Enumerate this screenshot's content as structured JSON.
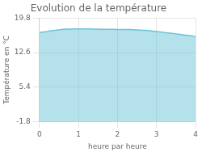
{
  "chart_data": {
    "type": "area",
    "title": "Evolution de la température",
    "xlabel": "heure par heure",
    "ylabel": "Température en °C",
    "x": [
      0.0,
      0.1,
      0.2,
      0.3,
      0.4,
      0.5,
      0.6,
      0.7,
      0.8,
      0.9,
      1.0,
      1.1,
      1.2,
      1.3,
      1.4,
      1.5,
      1.6,
      1.7,
      1.8,
      1.9,
      2.0,
      2.1,
      2.2,
      2.3,
      2.4,
      2.5,
      2.6,
      2.7,
      2.8,
      2.9,
      3.0,
      3.1,
      3.2,
      3.3,
      3.4,
      3.5,
      3.6,
      3.7,
      3.8,
      3.9,
      4.0
    ],
    "values": [
      16.8,
      16.9,
      17.0,
      17.15,
      17.25,
      17.35,
      17.45,
      17.5,
      17.52,
      17.53,
      17.55,
      17.55,
      17.55,
      17.53,
      17.52,
      17.5,
      17.48,
      17.47,
      17.46,
      17.45,
      17.44,
      17.43,
      17.42,
      17.4,
      17.38,
      17.35,
      17.3,
      17.25,
      17.2,
      17.1,
      17.0,
      16.9,
      16.8,
      16.7,
      16.6,
      16.5,
      16.4,
      16.3,
      16.2,
      16.1,
      15.95
    ],
    "color": "#6cc4d8",
    "xlim": [
      0,
      4
    ],
    "xticks": [
      0,
      1,
      2,
      3,
      4
    ],
    "ylim": [
      -1.8,
      19.8
    ],
    "yticks": [
      -1.8,
      5.4,
      12.6,
      19.8
    ],
    "grid": true
  }
}
